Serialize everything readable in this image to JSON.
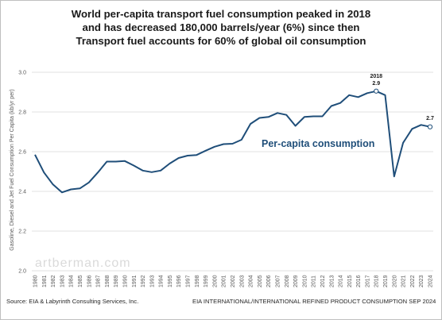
{
  "title_lines": [
    "World per-capita transport fuel consumption peaked in 2018",
    "and has decreased 180,000 barrels/year (6%) since then",
    "Transport fuel accounts for 60% of global oil consumption"
  ],
  "footer": {
    "source": "Source: EIA & Labyrinth Consulting Services, Inc.",
    "note": "EIA INTERNATIONAL/INTERNATIONAL REFINED PRODUCT CONSUMPTION SEP 2024"
  },
  "watermark": "artberman.com",
  "colors": {
    "line": "#1f4e79",
    "marker": "#ffffff",
    "grid": "#d9d9d9"
  },
  "chart_data": {
    "type": "line",
    "ylabel": "Gasoline, Diesel and Jet Fuel Consumption Per Capita (kb/yr per)",
    "xlabel": "",
    "ylim": [
      2.0,
      3.0
    ],
    "yticks": [
      "2.0",
      "2.2",
      "2.4",
      "2.6",
      "2.8",
      "3.0"
    ],
    "grid": true,
    "series": [
      {
        "name": "Per-capita consumption",
        "x": [
          1980,
          1981,
          1982,
          1983,
          1984,
          1985,
          1986,
          1987,
          1988,
          1989,
          1990,
          1991,
          1992,
          1993,
          1994,
          1995,
          1996,
          1997,
          1998,
          1999,
          2000,
          2001,
          2002,
          2003,
          2004,
          2005,
          2006,
          2007,
          2008,
          2009,
          2010,
          2011,
          2012,
          2013,
          2014,
          2015,
          2016,
          2017,
          2018,
          2019,
          2020,
          2021,
          2022,
          2023,
          2024
        ],
        "values": [
          2.585,
          2.495,
          2.435,
          2.395,
          2.41,
          2.415,
          2.445,
          2.495,
          2.55,
          2.55,
          2.553,
          2.53,
          2.505,
          2.497,
          2.505,
          2.54,
          2.568,
          2.58,
          2.583,
          2.605,
          2.625,
          2.638,
          2.64,
          2.66,
          2.74,
          2.77,
          2.775,
          2.795,
          2.785,
          2.73,
          2.775,
          2.778,
          2.778,
          2.83,
          2.845,
          2.885,
          2.875,
          2.895,
          2.905,
          2.885,
          2.475,
          2.645,
          2.715,
          2.735,
          2.725
        ]
      }
    ],
    "annotations": [
      {
        "year": "2018",
        "value": "2.9"
      },
      {
        "value": "2.7"
      }
    ]
  }
}
